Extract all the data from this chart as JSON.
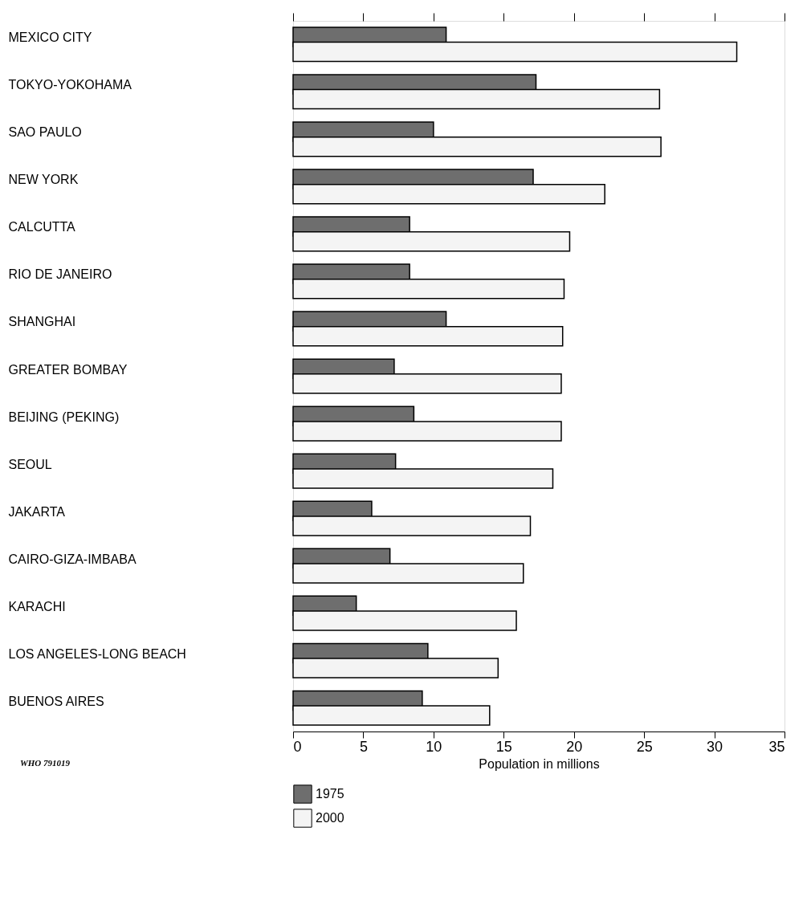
{
  "chart_data": {
    "type": "bar",
    "orientation": "horizontal",
    "categories": [
      "MEXICO CITY",
      "TOKYO-YOKOHAMA",
      "SAO PAULO",
      "NEW YORK",
      "CALCUTTA",
      "RIO DE JANEIRO",
      "SHANGHAI",
      "GREATER BOMBAY",
      "BEIJING (PEKING)",
      "SEOUL",
      "JAKARTA",
      "CAIRO-GIZA-IMBABA",
      "KARACHI",
      "LOS ANGELES-LONG BEACH",
      "BUENOS AIRES"
    ],
    "series": [
      {
        "name": "1975",
        "color": "#6e6e6e",
        "values": [
          10.9,
          17.3,
          10.0,
          17.1,
          8.3,
          8.3,
          10.9,
          7.2,
          8.6,
          7.3,
          5.6,
          6.9,
          4.5,
          9.6,
          9.2
        ]
      },
      {
        "name": "2000",
        "color": "#f4f4f4",
        "values": [
          31.6,
          26.1,
          26.2,
          22.2,
          19.7,
          19.3,
          19.2,
          19.1,
          19.1,
          18.5,
          16.9,
          16.4,
          15.9,
          14.6,
          14.0
        ]
      }
    ],
    "xlabel": "Population in millions",
    "xlim": [
      0,
      35
    ],
    "xticks": [
      0,
      5,
      10,
      15,
      20,
      25,
      30,
      35
    ],
    "grid": false,
    "legend": "bottom",
    "annotations": [
      "WHO 791019"
    ]
  }
}
